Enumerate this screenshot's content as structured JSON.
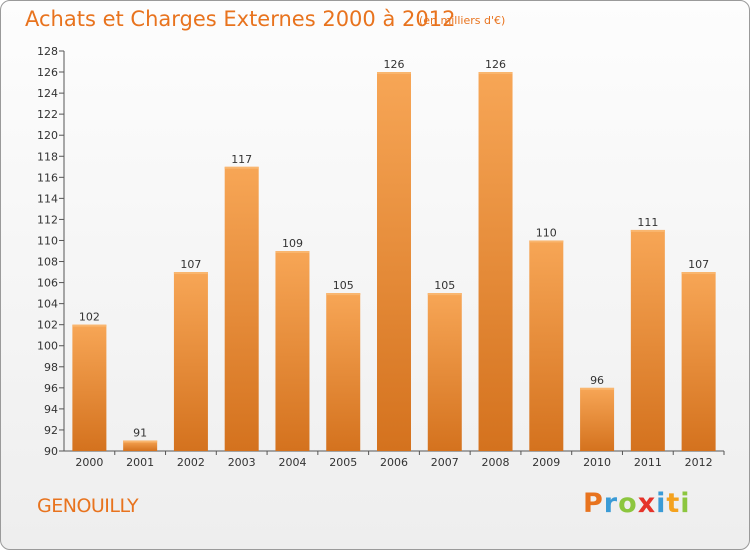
{
  "header": {
    "title": "Achats et Charges Externes 2000 à 2012",
    "subtitle": "(en milliers d'€)"
  },
  "footer": {
    "commune": "GENOUILLY",
    "logo_letters": [
      "P",
      "r",
      "o",
      "x",
      "i",
      "t",
      "i"
    ],
    "logo_colors": [
      "#e8731e",
      "#3a9bd6",
      "#8cc63f",
      "#e5332a",
      "#3a9bd6",
      "#f4a21e",
      "#8cc63f"
    ]
  },
  "colors": {
    "bar_top": "#f7a656",
    "bar_bottom": "#d4721e",
    "axis": "#555555",
    "grid": "#dcdcdc",
    "text": "#333333"
  },
  "chart_data": {
    "type": "bar",
    "categories": [
      "2000",
      "2001",
      "2002",
      "2003",
      "2004",
      "2005",
      "2006",
      "2007",
      "2008",
      "2009",
      "2010",
      "2011",
      "2012"
    ],
    "values": [
      102,
      91,
      107,
      117,
      109,
      105,
      126,
      105,
      126,
      110,
      96,
      111,
      107
    ],
    "title": "Achats et Charges Externes 2000 à 2012",
    "ylim": [
      90,
      128
    ],
    "yticks": [
      90,
      92,
      94,
      96,
      98,
      100,
      102,
      104,
      106,
      108,
      110,
      112,
      114,
      116,
      118,
      120,
      122,
      124,
      126,
      128
    ],
    "data_labels": true,
    "grid": false
  }
}
